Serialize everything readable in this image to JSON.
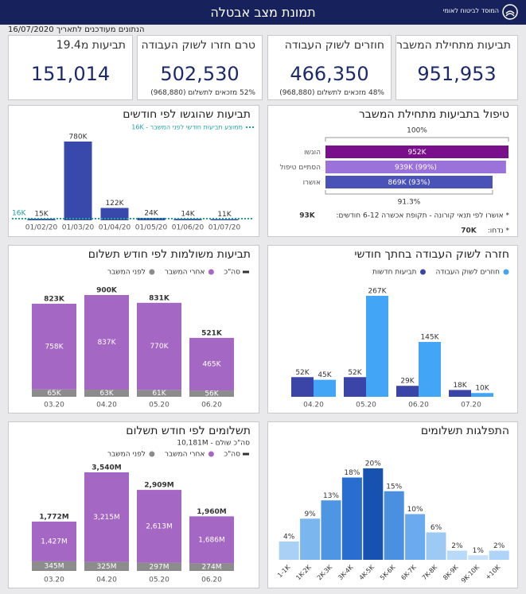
{
  "header": {
    "title": "תמונת מצב אבטלה",
    "org": "המוסד לביטוח לאומי",
    "updated": "הנתונים מעודכנים לתאריך 16/07/2020"
  },
  "kpis": [
    {
      "title": "תביעות מתחילת המשבר",
      "value": "951,953"
    },
    {
      "title": "חוזרים לשוק העבודה",
      "value": "466,350",
      "note": "48% מזכאים לתשלום (968,880)"
    },
    {
      "title": "טרם חזרו לשוק העבודה",
      "value": "502,530",
      "note": "52% מזכאים לתשלום (968,880)"
    },
    {
      "title": "תביעות מ19.4",
      "value": "151,014"
    }
  ],
  "chart_data": [
    {
      "type": "hbar",
      "title": "טיפול בתביעות מתחילת המשבר",
      "categories": [
        "הוגשו",
        "הסתיים טיפול",
        "אושרו"
      ],
      "values": [
        952000,
        939000,
        869000
      ],
      "value_labels": [
        "952K",
        "939K (99%)",
        "869K (93%)"
      ],
      "colors": [
        "#7a0f8c",
        "#9b72d9",
        "#4a52b8"
      ],
      "top_label": "100%",
      "bottom_label": "91.3%",
      "notes": [
        {
          "text": "* אושרו לפי תנאי קורונה - תקופת אכשרה 6-12 חודשים:",
          "value": "93K"
        },
        {
          "text": "* נדחו:",
          "value": "70K"
        }
      ]
    },
    {
      "type": "bar",
      "title": "תביעות שהוגשו לפי חודשים",
      "categories": [
        "01/02/20",
        "01/03/20",
        "01/04/20",
        "01/05/20",
        "01/06/20",
        "01/07/20"
      ],
      "values": [
        15000,
        780000,
        122000,
        24000,
        14000,
        11000
      ],
      "value_labels": [
        "15K",
        "780K",
        "122K",
        "24K",
        "14K",
        "11K"
      ],
      "color": "#3949ab",
      "reference": {
        "name": "ממוצע תביעות חודשי לפני המשבר - 16K",
        "value": 16000,
        "value_label": "16K",
        "color": "#1fa3a3"
      }
    },
    {
      "type": "stacked_bar",
      "title": "תביעות משולמות לפי חודש תשלום",
      "categories": [
        "03.20",
        "04.20",
        "05.20",
        "06.20"
      ],
      "series": [
        {
          "name": "לפני המשבר",
          "color": "#8c8c8c",
          "values": [
            65000,
            63000,
            61000,
            56000
          ],
          "value_labels": [
            "65K",
            "63K",
            "61K",
            "56K"
          ]
        },
        {
          "name": "אחרי המשבר",
          "color": "#a468c4",
          "values": [
            758000,
            837000,
            770000,
            465000
          ],
          "value_labels": [
            "758K",
            "837K",
            "770K",
            "465K"
          ]
        }
      ],
      "totals": {
        "name": "סה\"כ",
        "color": "#333333",
        "values": [
          823000,
          900000,
          831000,
          521000
        ],
        "value_labels": [
          "823K",
          "900K",
          "831K",
          "521K"
        ]
      }
    },
    {
      "type": "grouped_bar",
      "title": "חזרה לשוק העבודה בחתך חודשי",
      "categories": [
        "04.20",
        "05.20",
        "06.20",
        "07.20"
      ],
      "series": [
        {
          "name": "תביעות חדשות",
          "color": "#3b45a8",
          "values": [
            52000,
            52000,
            29000,
            18000
          ],
          "value_labels": [
            "52K",
            "52K",
            "29K",
            "18K"
          ]
        },
        {
          "name": "חוזרים לשוק העבודה",
          "color": "#42a5f5",
          "values": [
            45000,
            267000,
            145000,
            10000
          ],
          "value_labels": [
            "45K",
            "267K",
            "145K",
            "10K"
          ]
        }
      ]
    },
    {
      "type": "stacked_bar",
      "title": "תשלומים לפי חודש תשלום",
      "subtitle": "סה\"כ שולם - 10,181M",
      "categories": [
        "03.20",
        "04.20",
        "05.20",
        "06.20"
      ],
      "series": [
        {
          "name": "לפני המשבר",
          "color": "#8c8c8c",
          "values": [
            345000000,
            325000000,
            297000000,
            274000000
          ],
          "value_labels": [
            "345M",
            "325M",
            "297M",
            "274M"
          ]
        },
        {
          "name": "אחרי המשבר",
          "color": "#a468c4",
          "values": [
            1427000000,
            3215000000,
            2613000000,
            1686000000
          ],
          "value_labels": [
            "1,427M",
            "3,215M",
            "2,613M",
            "1,686M"
          ]
        }
      ],
      "totals": {
        "name": "סה\"כ",
        "color": "#333333",
        "values": [
          1772000000,
          3540000000,
          2909000000,
          1960000000
        ],
        "value_labels": [
          "1,772M",
          "3,540M",
          "2,909M",
          "1,960M"
        ]
      }
    },
    {
      "type": "bar",
      "title": "התפלגות תשלומים",
      "categories": [
        "1-1K",
        "1K-2K",
        "2K-3K",
        "3K-4K",
        "4K-5K",
        "5K-6K",
        "6K-7K",
        "7K-8K",
        "8K-9K",
        "9K-10K",
        "+10K"
      ],
      "values": [
        4,
        9,
        13,
        18,
        20,
        15,
        10,
        6,
        2,
        1,
        2
      ],
      "value_labels": [
        "4%",
        "9%",
        "13%",
        "18%",
        "20%",
        "15%",
        "10%",
        "6%",
        "2%",
        "1%",
        "2%"
      ],
      "colors": [
        "#a9d0f5",
        "#7cb6ef",
        "#4f96e2",
        "#2a6dd0",
        "#1852b0",
        "#4a8fe0",
        "#6caaef",
        "#9ccaf5",
        "#b8daf8",
        "#c8e2fa",
        "#b0d4f7"
      ]
    }
  ]
}
